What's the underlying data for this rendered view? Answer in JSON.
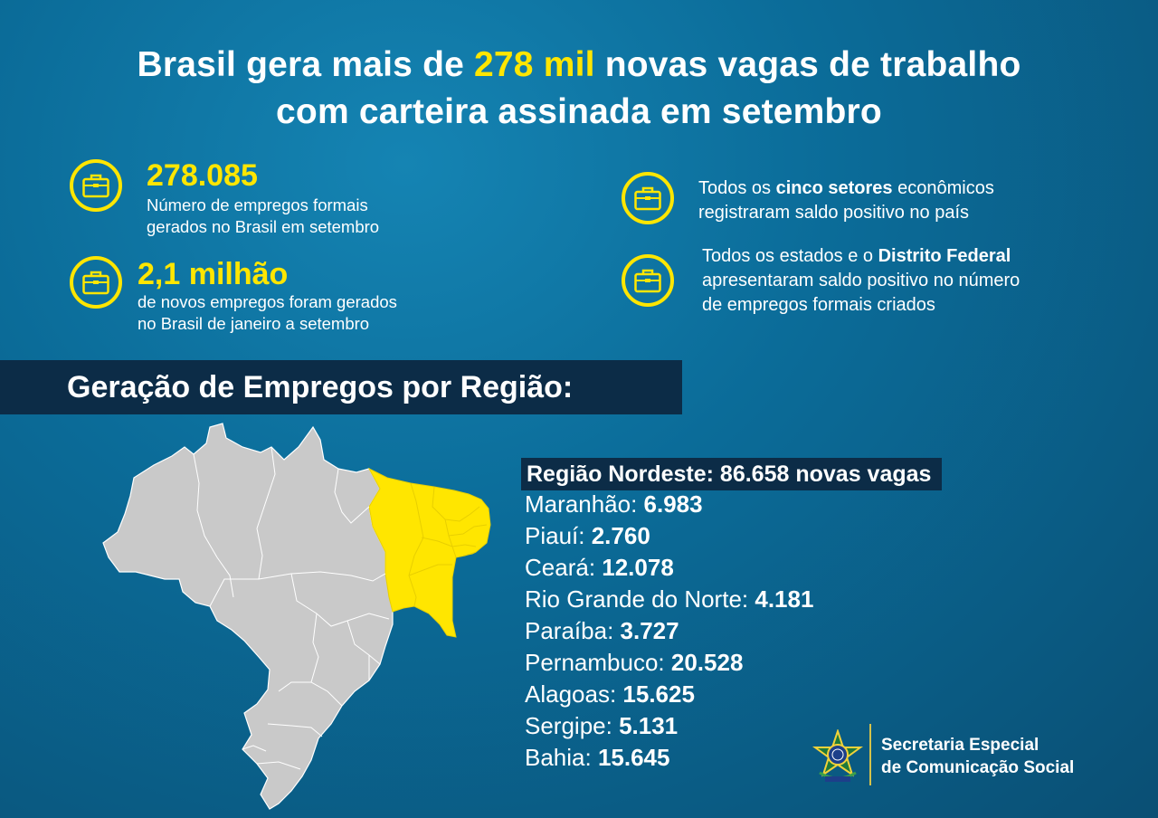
{
  "headline": {
    "part1": "Brasil gera mais de ",
    "highlight": "278 mil",
    "part2": " novas vagas de trabalho",
    "line2": "com carteira assinada em setembro",
    "highlight_color": "#ffe600"
  },
  "stats_left": [
    {
      "number": "278.085",
      "line1": "Número de empregos formais",
      "line2": "gerados no Brasil em setembro",
      "icon": "briefcase-icon"
    },
    {
      "number": "2,1 milhão",
      "line1": "de novos empregos foram gerados",
      "line2": "no Brasil de janeiro a setembro",
      "icon": "briefcase-icon"
    }
  ],
  "stats_right": [
    {
      "pre": "Todos os ",
      "bold": "cinco setores",
      "post": " econômicos",
      "line2": "registraram saldo positivo no país",
      "icon": "briefcase-icon"
    },
    {
      "pre": "Todos os estados e o ",
      "bold": "Distrito Federal",
      "line2": "apresentaram saldo positivo no número",
      "line3": "de empregos formais criados",
      "icon": "briefcase-icon"
    }
  ],
  "region_title": "Geração de Empregos por Região:",
  "region": {
    "title": "Região Nordeste: 86.658 novas vagas",
    "states": [
      {
        "name": "Maranhão: ",
        "value": "6.983"
      },
      {
        "name": "Piauí: ",
        "value": "2.760"
      },
      {
        "name": "Ceará: ",
        "value": "12.078"
      },
      {
        "name": "Rio Grande do Norte: ",
        "value": "4.181"
      },
      {
        "name": "Paraíba: ",
        "value": "3.727"
      },
      {
        "name": "Pernambuco: ",
        "value": "20.528"
      },
      {
        "name": "Alagoas: ",
        "value": "15.625"
      },
      {
        "name": "Sergipe: ",
        "value": "5.131"
      },
      {
        "name": "Bahia: ",
        "value": "15.645"
      }
    ],
    "highlight_color": "#ffe600",
    "map_base_color": "#c9c9c9"
  },
  "footer": {
    "line1": "Secretaria Especial",
    "line2": "de Comunicação Social",
    "emblem": "brazil-coat-of-arms-icon"
  }
}
